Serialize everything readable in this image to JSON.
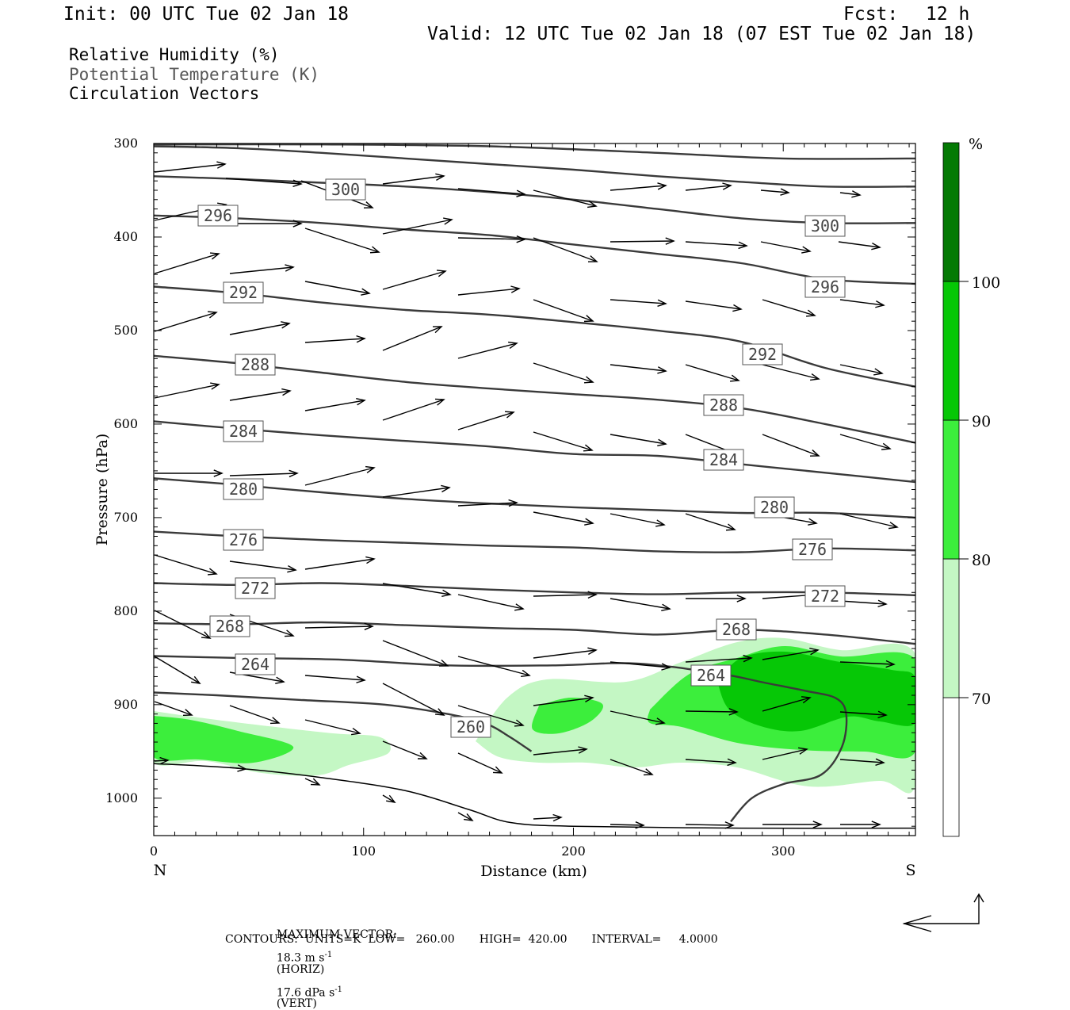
{
  "header": {
    "init": "Init: 00 UTC Tue 02 Jan 18",
    "fcst_label": "Fcst:",
    "fcst_value": "12 h",
    "valid": "Valid: 12 UTC Tue 02 Jan 18 (07 EST Tue 02 Jan 18)"
  },
  "legend": {
    "rh": "Relative Humidity (%)",
    "theta": "Potential Temperature (K)",
    "vectors": "Circulation Vectors"
  },
  "footer": {
    "max_vector_label": "MAXIMUM VECTOR:",
    "horiz_value": "18.3 m s",
    "horiz_unit": "(HORIZ)",
    "vert_value": "17.6 dPa s",
    "vert_unit": "(VERT)",
    "exponent": "-1",
    "contours": "CONTOURS:  UNITS=K  LOW=   260.00       HIGH=  420.00       INTERVAL=     4.0000"
  },
  "colors": {
    "rh_70_80": "#c4f7c4",
    "rh_80_90": "#3cee3c",
    "rh_90_100": "#06c706",
    "rh_100_plus": "#047a04",
    "contour": "#3a3a3a",
    "vector": "#000000"
  },
  "chart_data": {
    "type": "cross-section",
    "xlabel": "Distance (km)",
    "ylabel": "Pressure (hPa)",
    "xlim": [
      0,
      363
    ],
    "ylim": [
      1040,
      300
    ],
    "x_ticks": [
      "0",
      "100",
      "200",
      "300"
    ],
    "y_ticks": [
      "300",
      "400",
      "500",
      "600",
      "700",
      "800",
      "900",
      "1000"
    ],
    "x_ends": [
      "N",
      "S"
    ],
    "colorbar": {
      "unit": "%",
      "levels": [
        "70",
        "80",
        "90",
        "100"
      ],
      "colors": [
        "#ffffff",
        "#c4f7c4",
        "#3cee3c",
        "#06c706",
        "#047a04"
      ]
    },
    "theta_contours": [
      {
        "value": 260,
        "label": "260",
        "points": [
          [
            0,
            887
          ],
          [
            30,
            890
          ],
          [
            70,
            895
          ],
          [
            110,
            900
          ],
          [
            140,
            910
          ],
          [
            158,
            920
          ],
          [
            170,
            935
          ],
          [
            180,
            950
          ]
        ]
      },
      {
        "value": 264,
        "label": "264",
        "points": [
          [
            0,
            848
          ],
          [
            40,
            850
          ],
          [
            90,
            852
          ],
          [
            140,
            858
          ],
          [
            190,
            858
          ],
          [
            230,
            856
          ],
          [
            270,
            867
          ],
          [
            290,
            876
          ],
          [
            310,
            885
          ],
          [
            325,
            893
          ],
          [
            330,
            910
          ],
          [
            328,
            945
          ],
          [
            318,
            975
          ],
          [
            300,
            985
          ],
          [
            285,
            1000
          ],
          [
            275,
            1025
          ]
        ]
      },
      {
        "value": 268,
        "label": "268",
        "points": [
          [
            0,
            813
          ],
          [
            40,
            814
          ],
          [
            80,
            812
          ],
          [
            120,
            815
          ],
          [
            160,
            818
          ],
          [
            200,
            820
          ],
          [
            240,
            825
          ],
          [
            280,
            820
          ],
          [
            320,
            825
          ],
          [
            363,
            835
          ]
        ]
      },
      {
        "value": 272,
        "label": "272",
        "points": [
          [
            0,
            770
          ],
          [
            40,
            772
          ],
          [
            80,
            770
          ],
          [
            120,
            773
          ],
          [
            160,
            777
          ],
          [
            200,
            780
          ],
          [
            240,
            782
          ],
          [
            280,
            780
          ],
          [
            320,
            780
          ],
          [
            363,
            783
          ]
        ]
      },
      {
        "value": 276,
        "label": "276",
        "points": [
          [
            0,
            715
          ],
          [
            40,
            720
          ],
          [
            80,
            724
          ],
          [
            120,
            727
          ],
          [
            160,
            730
          ],
          [
            200,
            732
          ],
          [
            240,
            736
          ],
          [
            280,
            737
          ],
          [
            320,
            733
          ],
          [
            363,
            735
          ]
        ]
      },
      {
        "value": 280,
        "label": "280",
        "points": [
          [
            0,
            658
          ],
          [
            40,
            665
          ],
          [
            80,
            673
          ],
          [
            120,
            680
          ],
          [
            160,
            685
          ],
          [
            200,
            689
          ],
          [
            240,
            692
          ],
          [
            280,
            695
          ],
          [
            320,
            695
          ],
          [
            363,
            700
          ]
        ]
      },
      {
        "value": 284,
        "label": "284",
        "points": [
          [
            0,
            597
          ],
          [
            40,
            605
          ],
          [
            80,
            612
          ],
          [
            120,
            618
          ],
          [
            160,
            624
          ],
          [
            200,
            632
          ],
          [
            240,
            634
          ],
          [
            280,
            643
          ],
          [
            320,
            652
          ],
          [
            363,
            662
          ]
        ]
      },
      {
        "value": 288,
        "label": "288",
        "points": [
          [
            0,
            527
          ],
          [
            40,
            535
          ],
          [
            80,
            545
          ],
          [
            120,
            555
          ],
          [
            160,
            562
          ],
          [
            200,
            568
          ],
          [
            240,
            574
          ],
          [
            280,
            583
          ],
          [
            320,
            600
          ],
          [
            363,
            620
          ]
        ]
      },
      {
        "value": 292,
        "label": "292",
        "points": [
          [
            0,
            453
          ],
          [
            40,
            460
          ],
          [
            80,
            470
          ],
          [
            120,
            478
          ],
          [
            160,
            483
          ],
          [
            200,
            491
          ],
          [
            240,
            500
          ],
          [
            280,
            512
          ],
          [
            320,
            540
          ],
          [
            363,
            560
          ]
        ]
      },
      {
        "value": 296,
        "label": "296",
        "points": [
          [
            0,
            377
          ],
          [
            40,
            380
          ],
          [
            80,
            385
          ],
          [
            120,
            392
          ],
          [
            160,
            398
          ],
          [
            200,
            408
          ],
          [
            240,
            418
          ],
          [
            280,
            428
          ],
          [
            320,
            445
          ],
          [
            363,
            450
          ]
        ]
      },
      {
        "value": 300,
        "label": "300",
        "points": [
          [
            0,
            335
          ],
          [
            40,
            338
          ],
          [
            80,
            342
          ],
          [
            120,
            346
          ],
          [
            160,
            352
          ],
          [
            200,
            360
          ],
          [
            240,
            370
          ],
          [
            280,
            380
          ],
          [
            320,
            385
          ],
          [
            363,
            385
          ]
        ]
      },
      {
        "value": 304,
        "label": "",
        "points": [
          [
            0,
            303
          ],
          [
            40,
            305
          ],
          [
            80,
            310
          ],
          [
            120,
            316
          ],
          [
            160,
            322
          ],
          [
            200,
            328
          ],
          [
            240,
            335
          ],
          [
            280,
            341
          ],
          [
            320,
            346
          ],
          [
            363,
            346
          ]
        ]
      },
      {
        "value": 308,
        "label": "",
        "points": [
          [
            0,
            301
          ],
          [
            80,
            301
          ],
          [
            160,
            303
          ],
          [
            240,
            310
          ],
          [
            300,
            316
          ],
          [
            363,
            316
          ]
        ]
      }
    ],
    "surface": [
      [
        0,
        963
      ],
      [
        40,
        968
      ],
      [
        80,
        978
      ],
      [
        120,
        992
      ],
      [
        150,
        1012
      ],
      [
        170,
        1026
      ],
      [
        200,
        1030
      ],
      [
        280,
        1032
      ],
      [
        363,
        1032
      ]
    ]
  }
}
